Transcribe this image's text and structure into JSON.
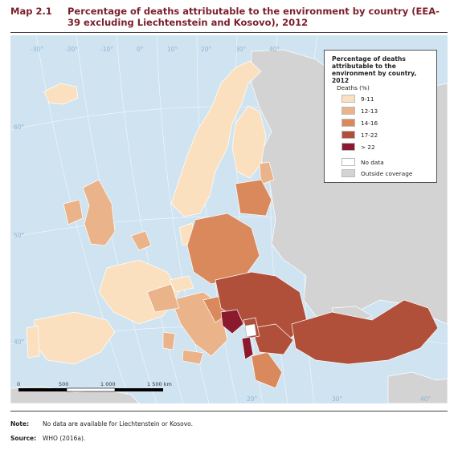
{
  "header": {
    "map_label": "Map 2.1",
    "title": "Percentage of deaths attributable to the environment by country (EEA-39 excluding Liechtenstein and Kosovo), 2012"
  },
  "map": {
    "graticule_labels": {
      "longitudes": [
        "-30°",
        "-20°",
        "-10°",
        "0°",
        "10°",
        "20°",
        "30°",
        "40°"
      ],
      "bottom_longitudes": [
        "20°",
        "30°",
        "40°"
      ],
      "latitudes": [
        "60°",
        "50°",
        "40°"
      ]
    },
    "scale_bar": {
      "ticks": [
        "0",
        "500",
        "1 000",
        "1 500 km"
      ]
    },
    "colors": {
      "sea": "#cfe3f1",
      "outside": "#d3d3d3",
      "class_9_11": "#fbe0bf",
      "class_12_13": "#eab38a",
      "class_14_16": "#d9895c",
      "class_17_22": "#b0503a",
      "class_gt22": "#8c1a2e",
      "no_data": "#ffffff"
    }
  },
  "legend": {
    "title": "Percentage of deaths attributable to the environment by country, 2012",
    "subtitle": "Deaths (%)",
    "items": [
      {
        "label": "9-11",
        "color": "#fbe0bf"
      },
      {
        "label": "12-13",
        "color": "#eab38a"
      },
      {
        "label": "14-16",
        "color": "#d9895c"
      },
      {
        "label": "17-22",
        "color": "#b0503a"
      },
      {
        "label": "> 22",
        "color": "#8c1a2e"
      }
    ],
    "extra": [
      {
        "label": "No data",
        "color": "#ffffff"
      },
      {
        "label": "Outside coverage",
        "color": "#d3d3d3"
      }
    ]
  },
  "footer": {
    "note_label": "Note:",
    "note_text": "No data are available for Liechtenstein or Kosovo.",
    "source_label": "Source:",
    "source_text": "WHO (2016a)."
  }
}
